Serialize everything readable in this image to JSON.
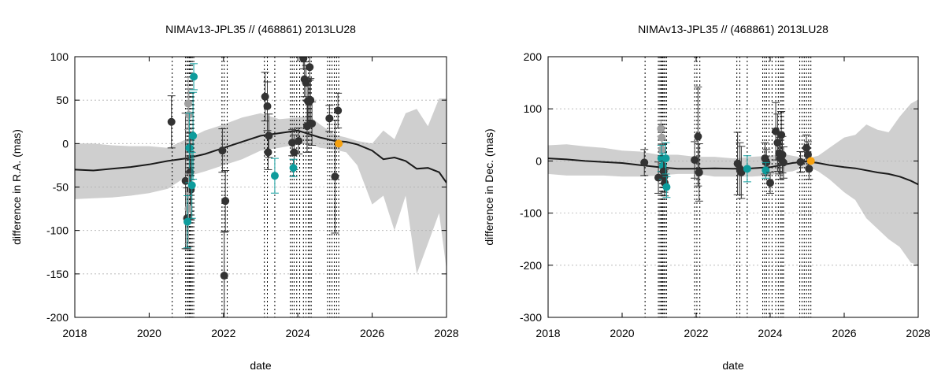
{
  "colors": {
    "band": "#cfcfcf",
    "line": "#1a1a1a",
    "obs": "#333333",
    "obs_light": "#a0a0a0",
    "teal": "#0e9c9c",
    "orange": "#f6a10f",
    "grid": "#b0b0b0",
    "vline": "#000000"
  },
  "chart_data": [
    {
      "type": "scatter",
      "title": "NIMAv13-JPL35 // (468861) 2013LU28",
      "xlabel": "date",
      "ylabel": "difference in R.A. (mas)",
      "xlim": [
        2018,
        2028
      ],
      "ylim": [
        -200,
        100
      ],
      "xticks": [
        "2018",
        "2020",
        "2022",
        "2024",
        "2026",
        "2028"
      ],
      "yticks": [
        "100",
        "50",
        "0",
        "-50",
        "-100",
        "-150",
        "-200"
      ],
      "grid": true,
      "vlines": [
        2020.62,
        2020.98,
        2021.02,
        2021.05,
        2021.08,
        2021.1,
        2021.13,
        2021.16,
        2021.2,
        2021.96,
        2022.02,
        2022.1,
        2023.1,
        2023.18,
        2023.38,
        2023.8,
        2023.85,
        2023.9,
        2023.97,
        2024.05,
        2024.15,
        2024.22,
        2024.28,
        2024.32,
        2024.36,
        2024.8,
        2024.86,
        2024.92,
        2024.98,
        2025.04,
        2025.1
      ],
      "band": {
        "x": [
          2018,
          2018.5,
          2019,
          2019.5,
          2020,
          2020.5,
          2021,
          2021.5,
          2022,
          2022.5,
          2023,
          2023.5,
          2024,
          2024.3,
          2024.6,
          2025,
          2025.3,
          2025.6,
          2026,
          2026.3,
          2026.6,
          2026.9,
          2027.2,
          2027.5,
          2027.8,
          2028
        ],
        "upper": [
          0,
          0,
          -2,
          -3,
          -3,
          -5,
          5,
          15,
          22,
          30,
          35,
          28,
          30,
          32,
          22,
          10,
          7,
          3,
          0,
          15,
          5,
          35,
          40,
          20,
          52,
          52
        ],
        "lower": [
          -64,
          -63,
          -62,
          -60,
          -57,
          -52,
          -38,
          -32,
          -25,
          -18,
          -8,
          -5,
          -1,
          0,
          -5,
          -7,
          -10,
          -25,
          -70,
          -60,
          -100,
          -60,
          -150,
          -115,
          -80,
          -145
        ]
      },
      "line": {
        "x": [
          2018,
          2018.5,
          2019,
          2019.5,
          2020,
          2020.5,
          2021,
          2021.5,
          2022,
          2022.5,
          2023,
          2023.5,
          2024,
          2024.3,
          2024.6,
          2025,
          2025.3,
          2025.6,
          2026,
          2026.3,
          2026.6,
          2026.9,
          2027.2,
          2027.5,
          2027.8,
          2028
        ],
        "y": [
          -30,
          -31,
          -29,
          -27,
          -24,
          -20,
          -17,
          -12,
          -5,
          2,
          9,
          12,
          15,
          11,
          7,
          3,
          2,
          -1,
          -8,
          -18,
          -16,
          -20,
          -29,
          -28,
          -33,
          -45
        ]
      },
      "points": [
        {
          "x": 2020.6,
          "y": 25,
          "err": 30,
          "group": "obs"
        },
        {
          "x": 2020.98,
          "y": -43,
          "err": 78,
          "group": "obs"
        },
        {
          "x": 2021.02,
          "y": -86,
          "err": 35,
          "group": "obs"
        },
        {
          "x": 2021.05,
          "y": 46,
          "err": 30,
          "group": "obs_light"
        },
        {
          "x": 2021.07,
          "y": 33,
          "err": 30,
          "group": "obs_light"
        },
        {
          "x": 2021.08,
          "y": -5,
          "err": 40,
          "group": "teal"
        },
        {
          "x": 2021.1,
          "y": -33,
          "err": 45,
          "group": "obs"
        },
        {
          "x": 2021.12,
          "y": -53,
          "err": 35,
          "group": "obs"
        },
        {
          "x": 2021.06,
          "y": -75,
          "err": 40,
          "group": "obs_light"
        },
        {
          "x": 2021.03,
          "y": -90,
          "err": 30,
          "group": "teal"
        },
        {
          "x": 2021.15,
          "y": -48,
          "err": 38,
          "group": "teal"
        },
        {
          "x": 2021.18,
          "y": 9,
          "err": 50,
          "group": "teal"
        },
        {
          "x": 2021.2,
          "y": 77,
          "err": 15,
          "group": "teal"
        },
        {
          "x": 2021.97,
          "y": -8,
          "err": 25,
          "group": "obs"
        },
        {
          "x": 2022.05,
          "y": -66,
          "err": 35,
          "group": "obs"
        },
        {
          "x": 2022.02,
          "y": -152,
          "err": 50,
          "group": "obs"
        },
        {
          "x": 2023.12,
          "y": 54,
          "err": 28,
          "group": "obs"
        },
        {
          "x": 2023.18,
          "y": 43,
          "err": 28,
          "group": "obs"
        },
        {
          "x": 2023.22,
          "y": 9,
          "err": 25,
          "group": "obs"
        },
        {
          "x": 2023.2,
          "y": -10,
          "err": 20,
          "group": "obs"
        },
        {
          "x": 2023.38,
          "y": -37,
          "err": 20,
          "group": "teal"
        },
        {
          "x": 2023.85,
          "y": 1,
          "err": 15,
          "group": "obs"
        },
        {
          "x": 2023.9,
          "y": -10,
          "err": 20,
          "group": "obs"
        },
        {
          "x": 2023.88,
          "y": -28,
          "err": 10,
          "group": "teal"
        },
        {
          "x": 2024.02,
          "y": 3,
          "err": 15,
          "group": "obs"
        },
        {
          "x": 2024.15,
          "y": 98,
          "err": 12,
          "group": "obs"
        },
        {
          "x": 2024.18,
          "y": 74,
          "err": 20,
          "group": "obs"
        },
        {
          "x": 2024.22,
          "y": 70,
          "err": 20,
          "group": "obs"
        },
        {
          "x": 2024.27,
          "y": 49,
          "err": 25,
          "group": "obs"
        },
        {
          "x": 2024.3,
          "y": 48,
          "err": 25,
          "group": "obs"
        },
        {
          "x": 2024.32,
          "y": 88,
          "err": 15,
          "group": "obs"
        },
        {
          "x": 2024.34,
          "y": 50,
          "err": 25,
          "group": "obs"
        },
        {
          "x": 2024.25,
          "y": 20,
          "err": 30,
          "group": "obs"
        },
        {
          "x": 2024.38,
          "y": 23,
          "err": 25,
          "group": "obs"
        },
        {
          "x": 2024.85,
          "y": 29,
          "err": 15,
          "group": "obs"
        },
        {
          "x": 2025.0,
          "y": -38,
          "err": 65,
          "group": "obs"
        },
        {
          "x": 2025.08,
          "y": 38,
          "err": 20,
          "group": "obs"
        },
        {
          "x": 2025.1,
          "y": 0,
          "err": 0,
          "group": "orange"
        }
      ]
    },
    {
      "type": "scatter",
      "title": "NIMAv13-JPL35 // (468861) 2013LU28",
      "xlabel": "date",
      "ylabel": "difference in Dec. (mas)",
      "xlim": [
        2018,
        2028
      ],
      "ylim": [
        -300,
        200
      ],
      "xticks": [
        "2018",
        "2020",
        "2022",
        "2024",
        "2026",
        "2028"
      ],
      "yticks": [
        "200",
        "100",
        "0",
        "-100",
        "-200",
        "-300"
      ],
      "grid": true,
      "vlines": [
        2020.62,
        2020.98,
        2021.02,
        2021.05,
        2021.08,
        2021.1,
        2021.13,
        2021.16,
        2021.2,
        2021.96,
        2022.02,
        2022.1,
        2023.1,
        2023.18,
        2023.38,
        2023.8,
        2023.85,
        2023.9,
        2023.97,
        2024.05,
        2024.15,
        2024.22,
        2024.28,
        2024.32,
        2024.36,
        2024.8,
        2024.86,
        2024.92,
        2024.98,
        2025.04,
        2025.1
      ],
      "band": {
        "x": [
          2018,
          2018.5,
          2019,
          2019.5,
          2020,
          2020.5,
          2021,
          2021.5,
          2022,
          2022.5,
          2023,
          2023.5,
          2024,
          2024.3,
          2024.6,
          2025,
          2025.3,
          2025.6,
          2026,
          2026.3,
          2026.6,
          2026.9,
          2027.2,
          2027.5,
          2027.8,
          2028
        ],
        "upper": [
          30,
          32,
          28,
          25,
          20,
          18,
          12,
          12,
          8,
          8,
          5,
          8,
          10,
          14,
          10,
          5,
          10,
          25,
          45,
          50,
          70,
          60,
          55,
          85,
          110,
          118
        ],
        "lower": [
          -25,
          -28,
          -28,
          -28,
          -30,
          -30,
          -28,
          -25,
          -25,
          -30,
          -30,
          -30,
          -28,
          -22,
          -20,
          -10,
          -20,
          -35,
          -60,
          -75,
          -110,
          -130,
          -150,
          -165,
          -195,
          -200
        ]
      },
      "line": {
        "x": [
          2018,
          2018.5,
          2019,
          2019.5,
          2020,
          2020.5,
          2021,
          2021.5,
          2022,
          2022.5,
          2023,
          2023.5,
          2024,
          2024.3,
          2024.6,
          2025,
          2025.3,
          2025.6,
          2026,
          2026.3,
          2026.6,
          2026.9,
          2027.2,
          2027.5,
          2027.8,
          2028
        ],
        "y": [
          5,
          3,
          0,
          -2,
          -4,
          -8,
          -12,
          -15,
          -15,
          -14,
          -15,
          -14,
          -12,
          -8,
          -4,
          -1,
          -4,
          -8,
          -12,
          -14,
          -18,
          -22,
          -25,
          -30,
          -38,
          -45
        ]
      },
      "points": [
        {
          "x": 2020.6,
          "y": -3,
          "err": 25,
          "group": "obs"
        },
        {
          "x": 2020.98,
          "y": -32,
          "err": 30,
          "group": "obs"
        },
        {
          "x": 2021.05,
          "y": 62,
          "err": 15,
          "group": "obs_light"
        },
        {
          "x": 2021.07,
          "y": 45,
          "err": 20,
          "group": "obs_light"
        },
        {
          "x": 2021.08,
          "y": 22,
          "err": 20,
          "group": "obs_light"
        },
        {
          "x": 2021.06,
          "y": 5,
          "err": 25,
          "group": "teal"
        },
        {
          "x": 2021.1,
          "y": -10,
          "err": 25,
          "group": "teal"
        },
        {
          "x": 2021.12,
          "y": -20,
          "err": 30,
          "group": "obs"
        },
        {
          "x": 2021.14,
          "y": -30,
          "err": 30,
          "group": "obs"
        },
        {
          "x": 2021.15,
          "y": -42,
          "err": 25,
          "group": "obs"
        },
        {
          "x": 2021.18,
          "y": 5,
          "err": 30,
          "group": "teal"
        },
        {
          "x": 2021.2,
          "y": -50,
          "err": 20,
          "group": "teal"
        },
        {
          "x": 2021.96,
          "y": 2,
          "err": 35,
          "group": "obs"
        },
        {
          "x": 2022.05,
          "y": 47,
          "err": 95,
          "group": "obs"
        },
        {
          "x": 2022.08,
          "y": -22,
          "err": 55,
          "group": "obs"
        },
        {
          "x": 2023.12,
          "y": -5,
          "err": 60,
          "group": "obs"
        },
        {
          "x": 2023.18,
          "y": -15,
          "err": 50,
          "group": "obs"
        },
        {
          "x": 2023.22,
          "y": -22,
          "err": 50,
          "group": "obs"
        },
        {
          "x": 2023.38,
          "y": -15,
          "err": 25,
          "group": "teal"
        },
        {
          "x": 2023.86,
          "y": 5,
          "err": 30,
          "group": "obs"
        },
        {
          "x": 2023.9,
          "y": -3,
          "err": 25,
          "group": "obs"
        },
        {
          "x": 2023.88,
          "y": -18,
          "err": 15,
          "group": "teal"
        },
        {
          "x": 2024.0,
          "y": -42,
          "err": 20,
          "group": "obs"
        },
        {
          "x": 2024.15,
          "y": 57,
          "err": 55,
          "group": "obs"
        },
        {
          "x": 2024.2,
          "y": 35,
          "err": 55,
          "group": "obs"
        },
        {
          "x": 2024.24,
          "y": 15,
          "err": 40,
          "group": "obs"
        },
        {
          "x": 2024.27,
          "y": 5,
          "err": 40,
          "group": "obs"
        },
        {
          "x": 2024.3,
          "y": 50,
          "err": 45,
          "group": "obs"
        },
        {
          "x": 2024.33,
          "y": 12,
          "err": 35,
          "group": "obs"
        },
        {
          "x": 2024.36,
          "y": -3,
          "err": 30,
          "group": "obs"
        },
        {
          "x": 2024.82,
          "y": -2,
          "err": 20,
          "group": "obs"
        },
        {
          "x": 2024.98,
          "y": 25,
          "err": 25,
          "group": "obs"
        },
        {
          "x": 2025.02,
          "y": 12,
          "err": 25,
          "group": "obs"
        },
        {
          "x": 2025.05,
          "y": -15,
          "err": 20,
          "group": "obs"
        },
        {
          "x": 2025.1,
          "y": 0,
          "err": 0,
          "group": "orange"
        }
      ]
    }
  ]
}
